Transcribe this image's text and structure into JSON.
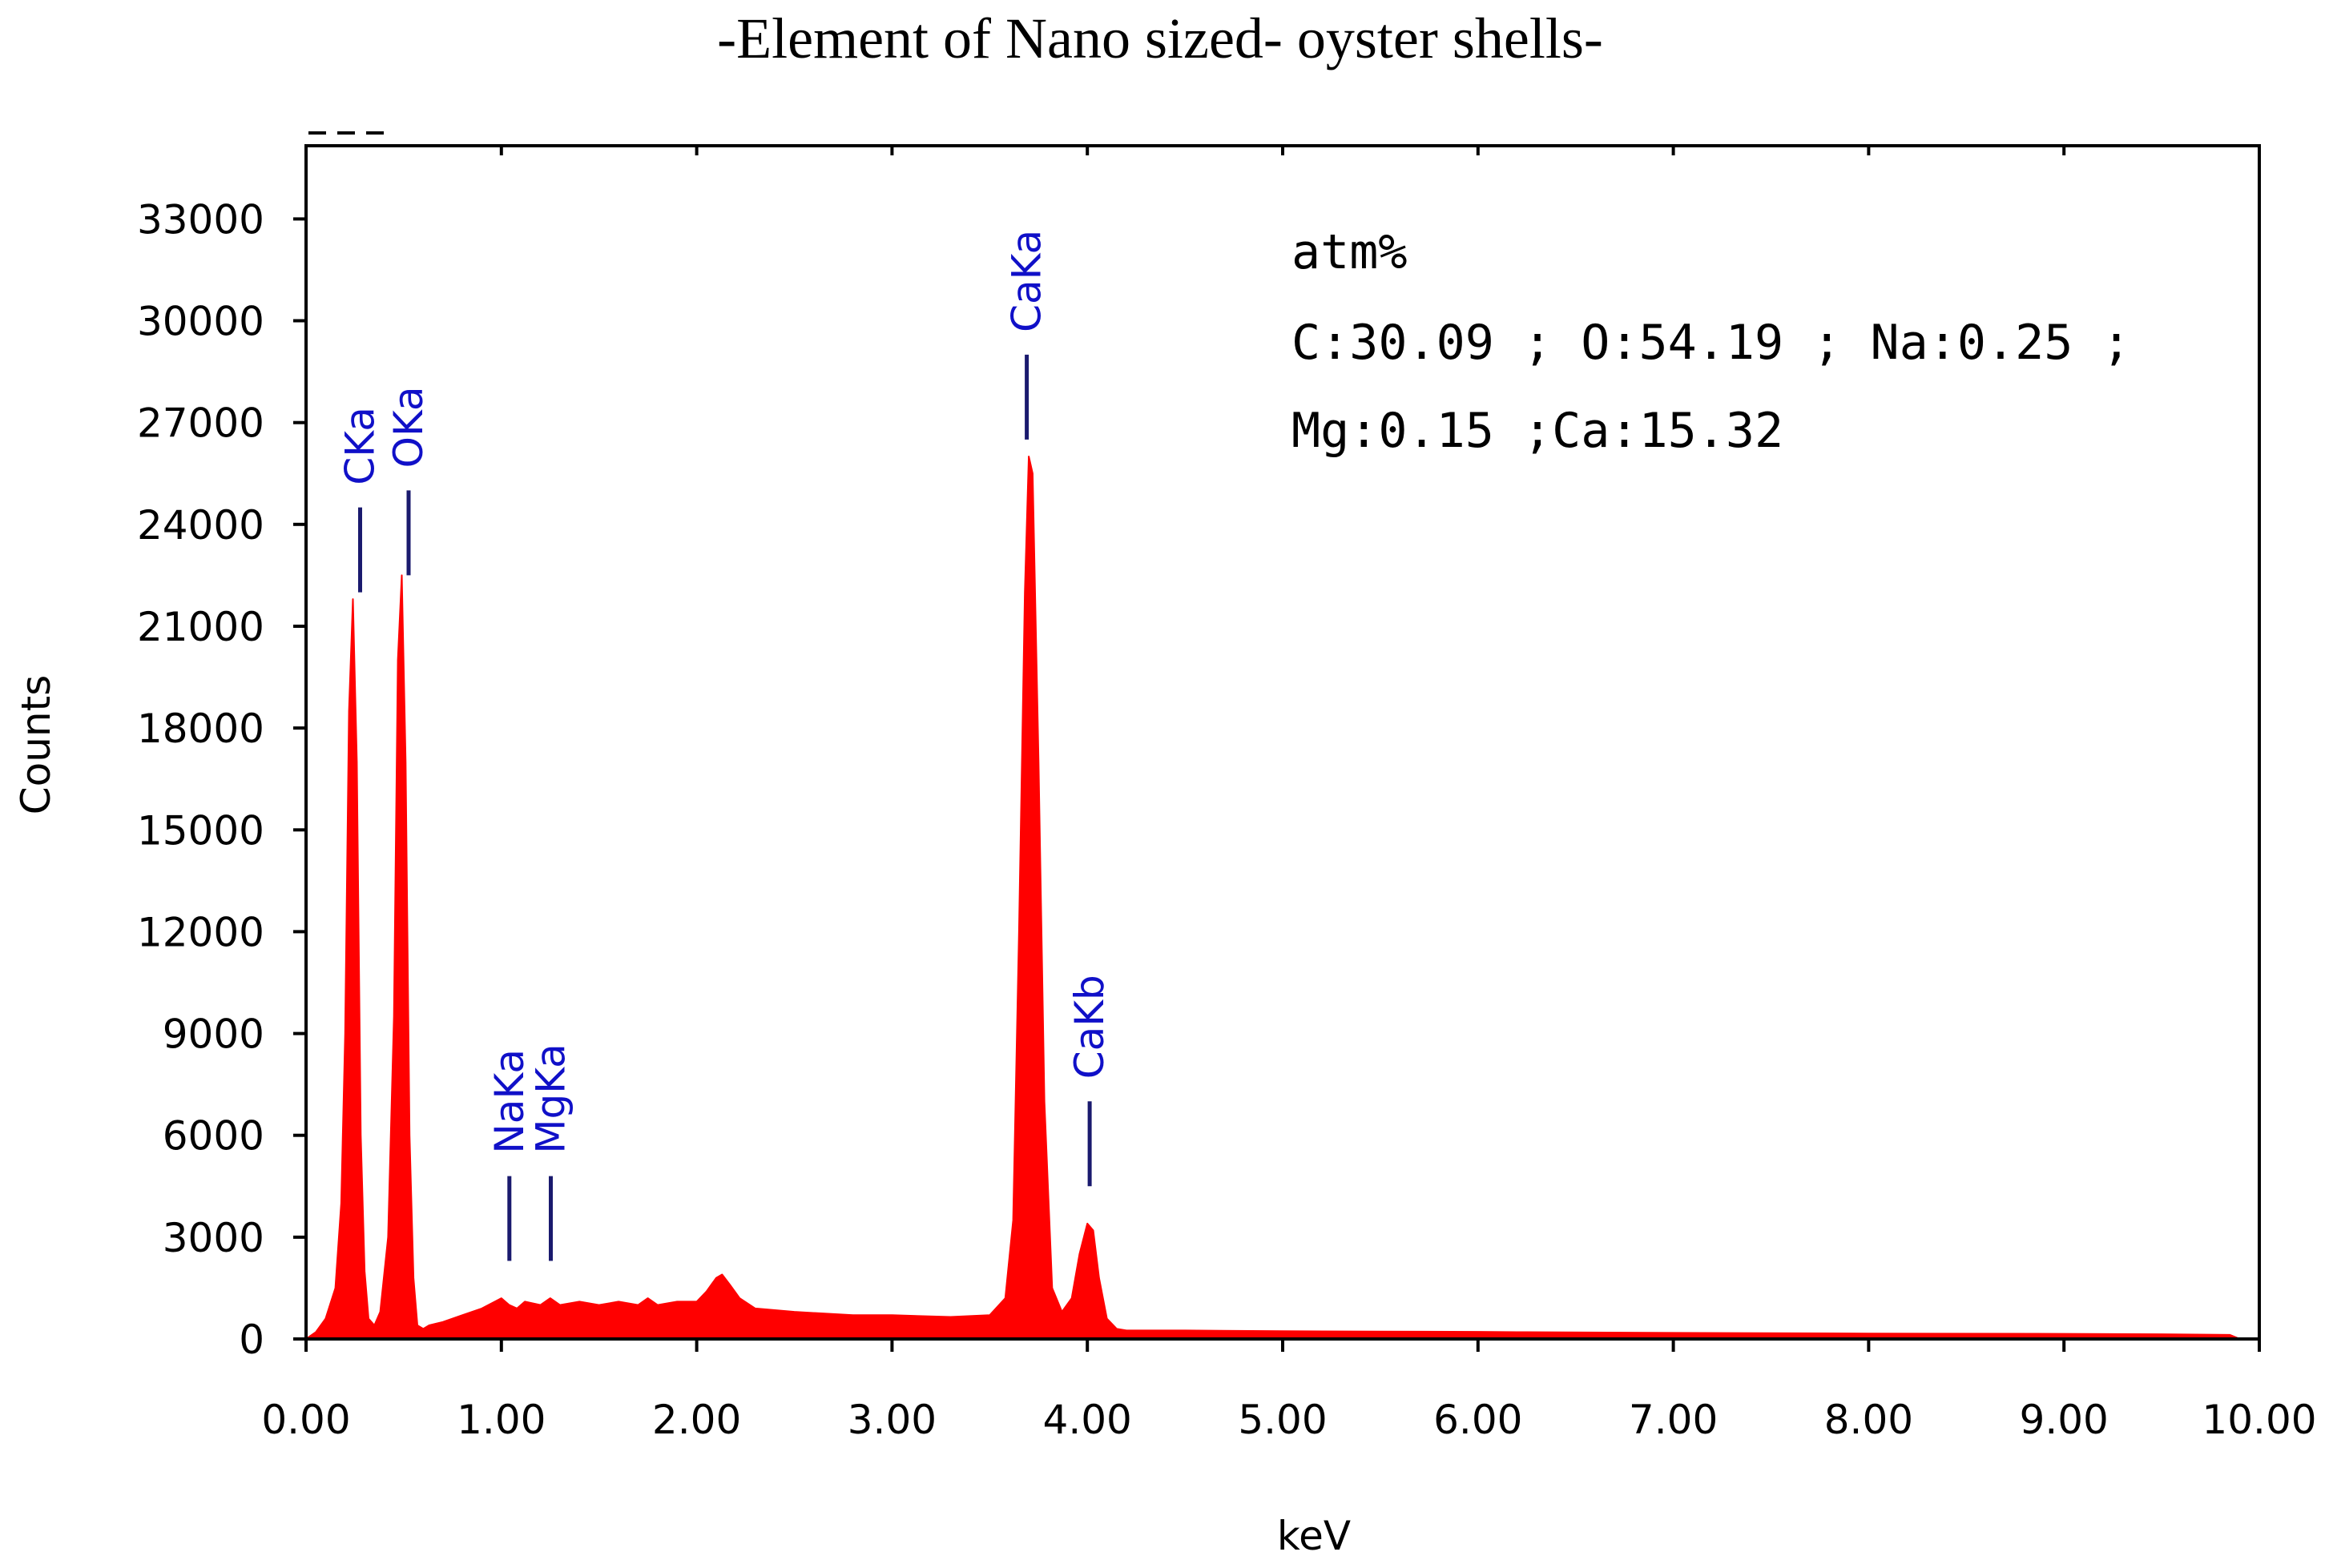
{
  "chart_data": {
    "type": "area",
    "title": "-Element of Nano sized- oyster shells-",
    "xlabel": "keV",
    "ylabel": "Counts",
    "xlim": [
      0,
      10
    ],
    "ylim": [
      0,
      35000
    ],
    "x_ticks": [
      0,
      1,
      2,
      3,
      4,
      5,
      6,
      7,
      8,
      9,
      10
    ],
    "x_tick_labels": [
      "0.00",
      "1.00",
      "2.00",
      "3.00",
      "4.00",
      "5.00",
      "6.00",
      "7.00",
      "8.00",
      "9.00",
      "10.00"
    ],
    "y_ticks": [
      0,
      3000,
      6000,
      9000,
      12000,
      15000,
      18000,
      21000,
      24000,
      27000,
      30000,
      33000
    ],
    "y_tick_labels": [
      "0",
      "3000",
      "6000",
      "9000",
      "12000",
      "15000",
      "18000",
      "21000",
      "24000",
      "27000",
      "30000",
      "33000"
    ],
    "grid": false,
    "colors": {
      "spectrum": "#ff0000",
      "peak_label": "#1010c8",
      "marker": "#1a1a6e"
    },
    "series": [
      {
        "x": [
          0.0,
          0.05,
          0.1,
          0.15,
          0.18,
          0.2,
          0.22,
          0.24,
          0.26,
          0.28,
          0.3,
          0.32,
          0.35,
          0.38,
          0.42,
          0.45,
          0.47,
          0.49,
          0.51,
          0.53,
          0.55,
          0.57,
          0.6,
          0.63,
          0.7,
          0.8,
          0.9,
          1.0,
          1.04,
          1.08,
          1.12,
          1.2,
          1.25,
          1.3,
          1.4,
          1.5,
          1.6,
          1.7,
          1.75,
          1.8,
          1.9,
          2.0,
          2.05,
          2.1,
          2.13,
          2.17,
          2.22,
          2.3,
          2.5,
          2.8,
          3.0,
          3.3,
          3.5,
          3.58,
          3.62,
          3.65,
          3.68,
          3.7,
          3.72,
          3.75,
          3.78,
          3.82,
          3.87,
          3.92,
          3.96,
          4.0,
          4.03,
          4.06,
          4.1,
          4.15,
          4.2,
          4.3,
          4.5,
          5.0,
          5.5,
          6.0,
          6.2,
          7.0,
          8.0,
          9.0,
          9.5,
          9.85,
          9.9,
          10.0
        ],
        "values": [
          0,
          200,
          600,
          1500,
          4000,
          9000,
          18500,
          21800,
          17000,
          6000,
          2000,
          600,
          400,
          800,
          3000,
          9500,
          20000,
          22500,
          17000,
          6000,
          1800,
          400,
          300,
          400,
          500,
          700,
          900,
          1200,
          1000,
          900,
          1100,
          1000,
          1200,
          1000,
          1100,
          1000,
          1100,
          1000,
          1200,
          1000,
          1100,
          1100,
          1400,
          1800,
          1900,
          1600,
          1200,
          900,
          800,
          700,
          700,
          650,
          700,
          1200,
          3500,
          12000,
          22000,
          26000,
          25500,
          17000,
          7000,
          1500,
          800,
          1200,
          2500,
          3400,
          3200,
          1800,
          600,
          300,
          250,
          250,
          250,
          230,
          220,
          210,
          200,
          180,
          160,
          150,
          140,
          120,
          0,
          0
        ]
      }
    ],
    "peaks": [
      {
        "label": "CKa",
        "energy": 0.277,
        "marker_top": 24500,
        "marker_bottom": 22000
      },
      {
        "label": "OKa",
        "energy": 0.525,
        "marker_top": 25000,
        "marker_bottom": 22500
      },
      {
        "label": "NaKa",
        "energy": 1.041,
        "marker_top": 4800,
        "marker_bottom": 2300
      },
      {
        "label": "MgKa",
        "energy": 1.253,
        "marker_top": 4800,
        "marker_bottom": 2300
      },
      {
        "label": "CaKa",
        "energy": 3.69,
        "marker_top": 29000,
        "marker_bottom": 26500
      },
      {
        "label": "CaKb",
        "energy": 4.012,
        "marker_top": 7000,
        "marker_bottom": 4500
      }
    ],
    "annotation": {
      "heading": "atm%",
      "line1": "C:30.09 ; O:54.19 ; Na:0.25 ;",
      "line2": "Mg:0.15 ;Ca:15.32"
    }
  }
}
